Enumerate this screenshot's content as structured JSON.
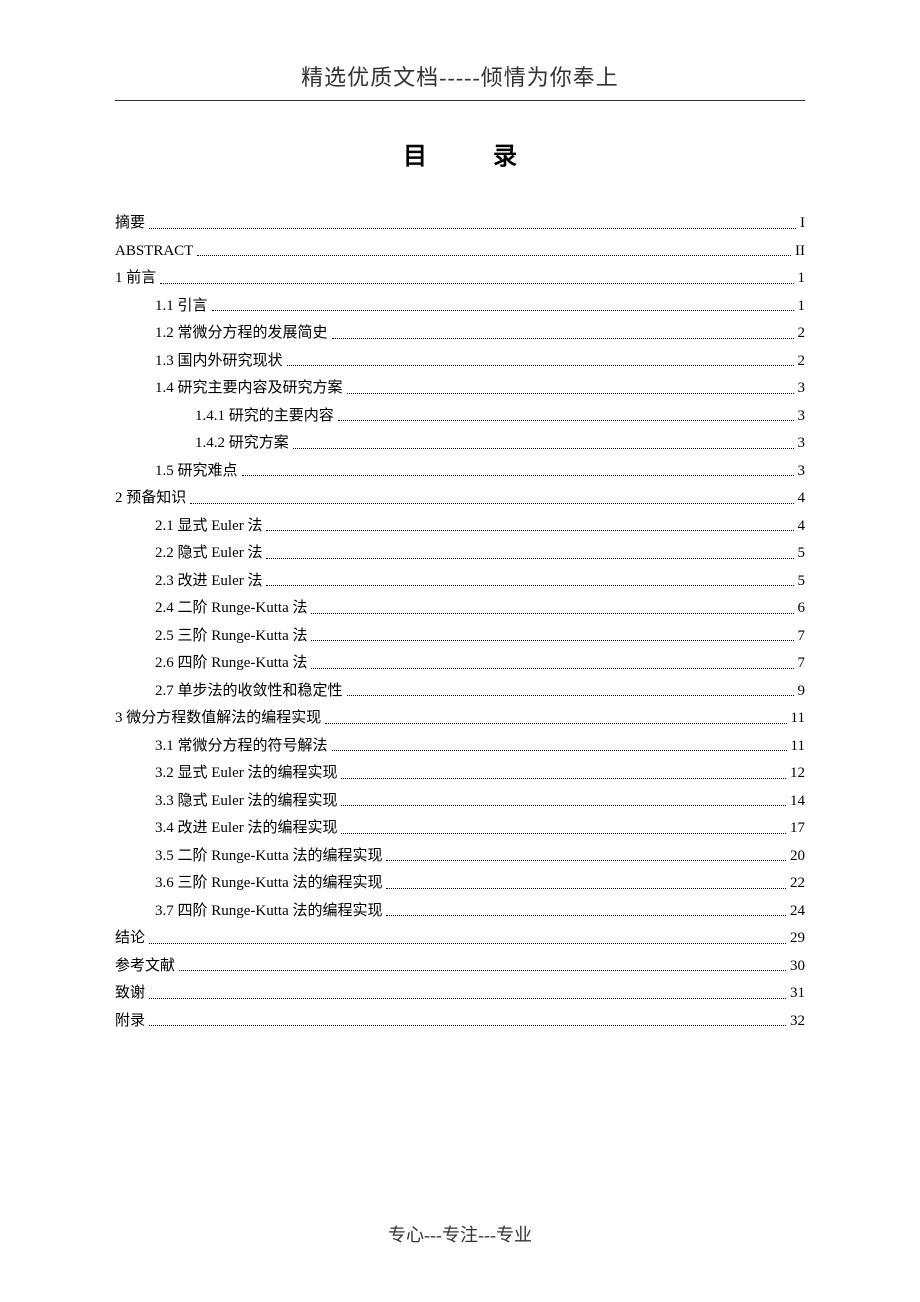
{
  "header": "精选优质文档-----倾情为你奉上",
  "title": "目  录",
  "footer": "专心---专注---专业",
  "toc": [
    {
      "label": "摘要",
      "page": "I",
      "indent": 0
    },
    {
      "label": "ABSTRACT",
      "page": "II",
      "indent": 0
    },
    {
      "label": "1  前言",
      "page": "1",
      "indent": 0
    },
    {
      "label": "1.1  引言",
      "page": "1",
      "indent": 1
    },
    {
      "label": "1.2 常微分方程的发展简史",
      "page": "2",
      "indent": 1
    },
    {
      "label": "1.3  国内外研究现状",
      "page": "2",
      "indent": 1
    },
    {
      "label": "1.4  研究主要内容及研究方案",
      "page": "3",
      "indent": 1
    },
    {
      "label": "1.4.1  研究的主要内容",
      "page": "3",
      "indent": 2
    },
    {
      "label": "1.4.2  研究方案",
      "page": "3",
      "indent": 2
    },
    {
      "label": "1.5  研究难点",
      "page": "3",
      "indent": 1
    },
    {
      "label": "2  预备知识",
      "page": "4",
      "indent": 0
    },
    {
      "label": "2.1  显式 Euler 法",
      "page": "4",
      "indent": 1
    },
    {
      "label": "2.2  隐式 Euler 法",
      "page": "5",
      "indent": 1
    },
    {
      "label": "2.3  改进 Euler 法",
      "page": "5",
      "indent": 1
    },
    {
      "label": "2.4  二阶 Runge-Kutta 法",
      "page": "6",
      "indent": 1
    },
    {
      "label": "2.5  三阶 Runge-Kutta 法",
      "page": "7",
      "indent": 1
    },
    {
      "label": "2.6  四阶 Runge-Kutta 法",
      "page": "7",
      "indent": 1
    },
    {
      "label": "2.7  单步法的收敛性和稳定性",
      "page": "9",
      "indent": 1
    },
    {
      "label": "3  微分方程数值解法的编程实现",
      "page": "11",
      "indent": 0
    },
    {
      "label": "3.1  常微分方程的符号解法",
      "page": "11",
      "indent": 1
    },
    {
      "label": "3.2  显式 Euler 法的编程实现",
      "page": "12",
      "indent": 1
    },
    {
      "label": "3.3  隐式 Euler 法的编程实现",
      "page": "14",
      "indent": 1
    },
    {
      "label": "3.4  改进 Euler 法的编程实现",
      "page": "17",
      "indent": 1
    },
    {
      "label": "3.5  二阶 Runge-Kutta 法的编程实现",
      "page": "20",
      "indent": 1
    },
    {
      "label": "3.6  三阶 Runge-Kutta 法的编程实现",
      "page": "22",
      "indent": 1
    },
    {
      "label": "3.7  四阶 Runge-Kutta 法的编程实现",
      "page": "24",
      "indent": 1
    },
    {
      "label": "结论",
      "page": "29",
      "indent": 0
    },
    {
      "label": "参考文献",
      "page": "30",
      "indent": 0
    },
    {
      "label": "致谢",
      "page": "31",
      "indent": 0
    },
    {
      "label": "附录",
      "page": "32",
      "indent": 0
    }
  ]
}
